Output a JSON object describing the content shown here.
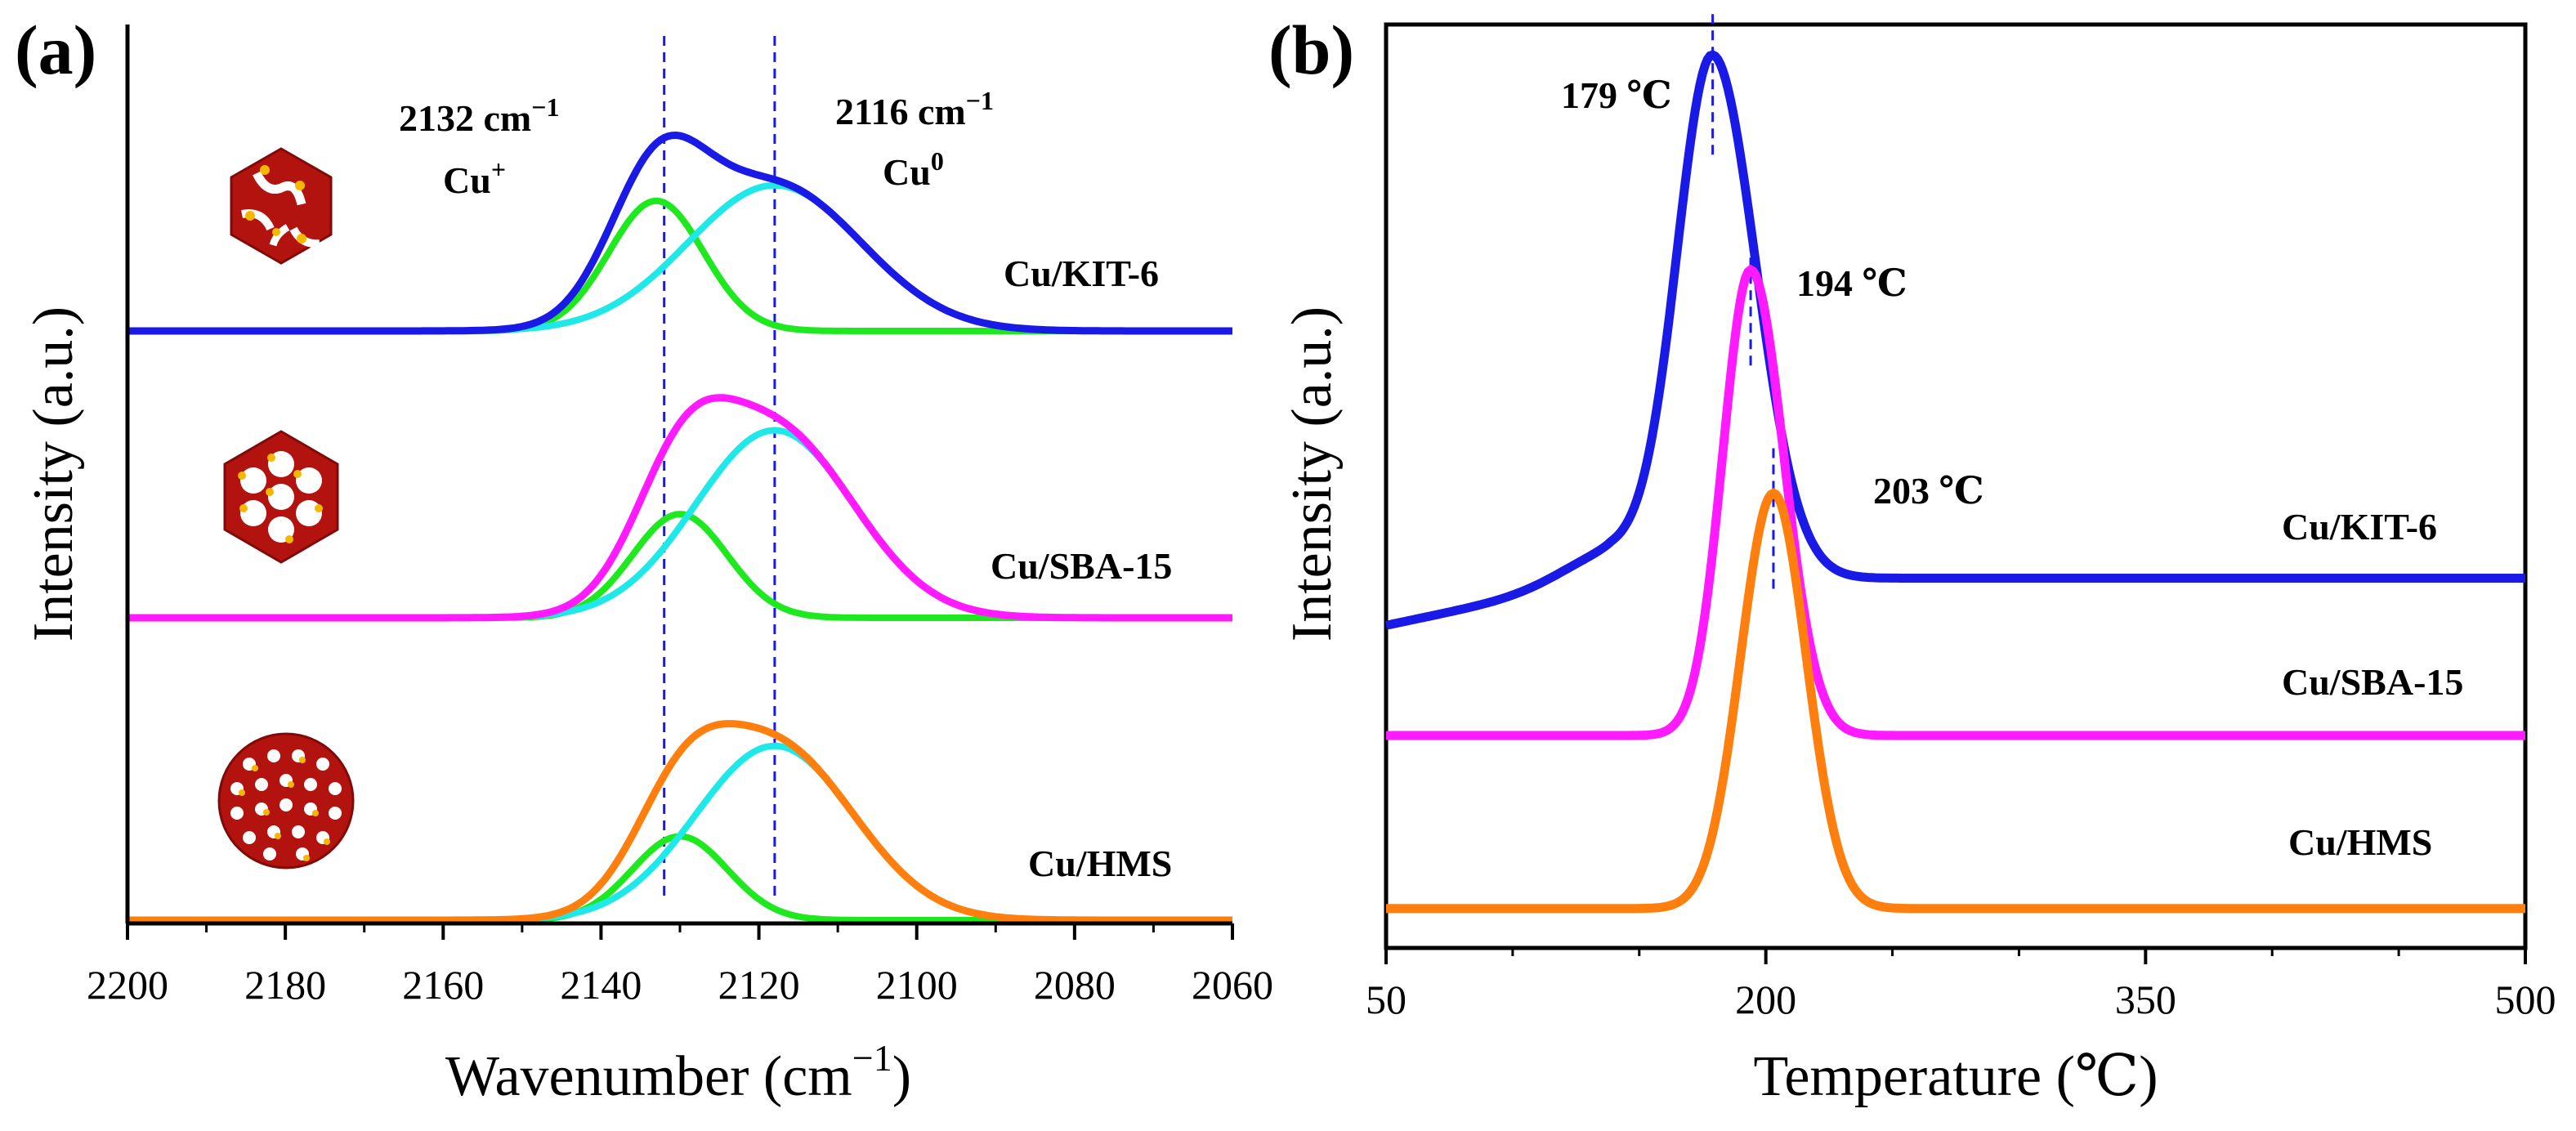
{
  "chart_data": [
    {
      "panel": "(a)",
      "type": "line",
      "xlabel": "Wavenumber (cm",
      "xlabel_sup": "−1",
      "xlabel_end": ")",
      "ylabel": "Intensity (a.u.)",
      "xlim": [
        2200,
        2060
      ],
      "xticks": [
        2200,
        2180,
        2160,
        2140,
        2120,
        2100,
        2080,
        2060
      ],
      "reference_lines": [
        2132,
        2118
      ],
      "annotations": [
        {
          "id": "peak1",
          "value": "2132 cm",
          "sup": "−1",
          "species": "Cu",
          "species_sup": "+"
        },
        {
          "id": "peak2",
          "value": "2116 cm",
          "sup": "−1",
          "species": "Cu",
          "species_sup": "0"
        }
      ],
      "colors": {
        "component_cu_plus": "#1ee81e",
        "component_cu0": "#1ee8e8"
      },
      "samples": [
        {
          "name": "Cu/KIT-6",
          "color": "#1a1ae6",
          "baseline": 0.0,
          "comp1": {
            "center": 2133,
            "amp": 0.59,
            "sigma": 6
          },
          "comp2": {
            "center": 2118,
            "amp": 0.66,
            "sigma": 11
          }
        },
        {
          "name": "Cu/SBA-15",
          "color": "#ff1aff",
          "baseline": 0.0,
          "comp1": {
            "center": 2130,
            "amp": 0.47,
            "sigma": 6
          },
          "comp2": {
            "center": 2118,
            "amp": 0.85,
            "sigma": 10
          }
        },
        {
          "name": "Cu/HMS",
          "color": "#ff7f0e",
          "baseline": 0.0,
          "comp1": {
            "center": 2130,
            "amp": 0.38,
            "sigma": 6
          },
          "comp2": {
            "center": 2118,
            "amp": 0.79,
            "sigma": 10
          }
        }
      ]
    },
    {
      "panel": "(b)",
      "type": "line",
      "xlabel": "Temperature (℃)",
      "ylabel": "Intensity (a.u.)",
      "xlim": [
        50,
        500
      ],
      "xticks": [
        50,
        200,
        350,
        500
      ],
      "series": [
        {
          "name": "Cu/KIT-6",
          "color": "#1a1ae6",
          "peak_label": "179 ℃",
          "peak_x": 179,
          "baseline": 0.5,
          "amp": 1.65,
          "sigma_left": 14,
          "sigma_right": 17,
          "shoulder_center": 140,
          "shoulder_amp": 0.09,
          "shoulder_sigma": 20,
          "low_base": 0.35
        },
        {
          "name": "Cu/SBA-15",
          "color": "#ff1aff",
          "peak_label": "194 ℃",
          "peak_x": 194,
          "baseline": 0.0,
          "amp": 1.48,
          "sigma_left": 11,
          "sigma_right": 13
        },
        {
          "name": "Cu/HMS",
          "color": "#ff7f0e",
          "peak_label": "203 ℃",
          "peak_x": 203,
          "baseline": -0.55,
          "amp": 1.32,
          "sigma_left": 13,
          "sigma_right": 13
        }
      ]
    }
  ]
}
